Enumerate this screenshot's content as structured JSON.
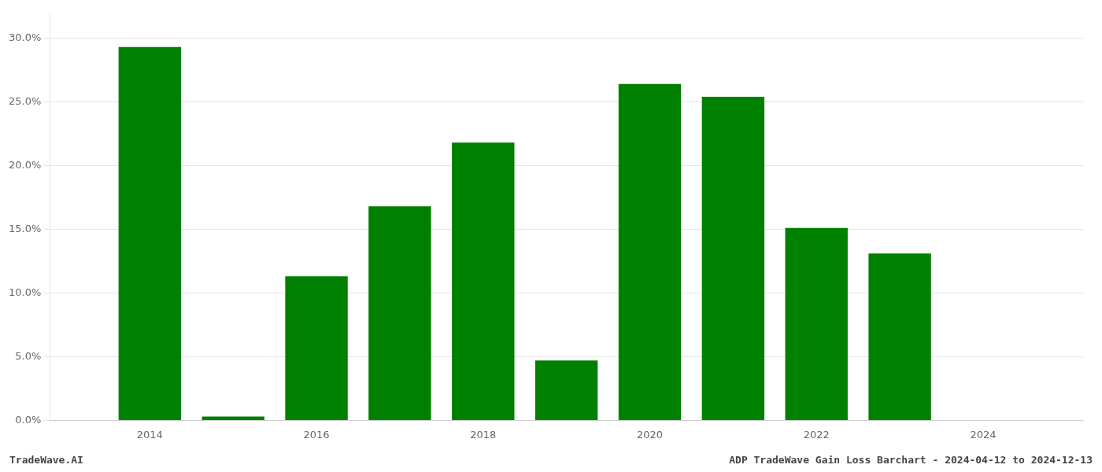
{
  "chart_data": {
    "type": "bar",
    "x": [
      2014,
      2015,
      2016,
      2017,
      2018,
      2019,
      2020,
      2021,
      2022,
      2023
    ],
    "values": [
      0.293,
      0.003,
      0.113,
      0.168,
      0.218,
      0.047,
      0.264,
      0.254,
      0.151,
      0.131
    ],
    "color": "#008000",
    "xlim": [
      2012.8,
      2025.2
    ],
    "xticks": [
      2014,
      2016,
      2018,
      2020,
      2022,
      2024
    ],
    "ylim": [
      0,
      0.32
    ],
    "yticks": [
      {
        "value": 0.0,
        "label": "0.0%"
      },
      {
        "value": 0.05,
        "label": "5.0%"
      },
      {
        "value": 0.1,
        "label": "10.0%"
      },
      {
        "value": 0.15,
        "label": "15.0%"
      },
      {
        "value": 0.2,
        "label": "20.0%"
      },
      {
        "value": 0.25,
        "label": "25.0%"
      },
      {
        "value": 0.3,
        "label": "30.0%"
      }
    ],
    "grid": "y",
    "annotations": [
      "TradeWave.AI",
      "ADP TradeWave Gain Loss Barchart - 2024-04-12 to 2024-12-13"
    ]
  }
}
